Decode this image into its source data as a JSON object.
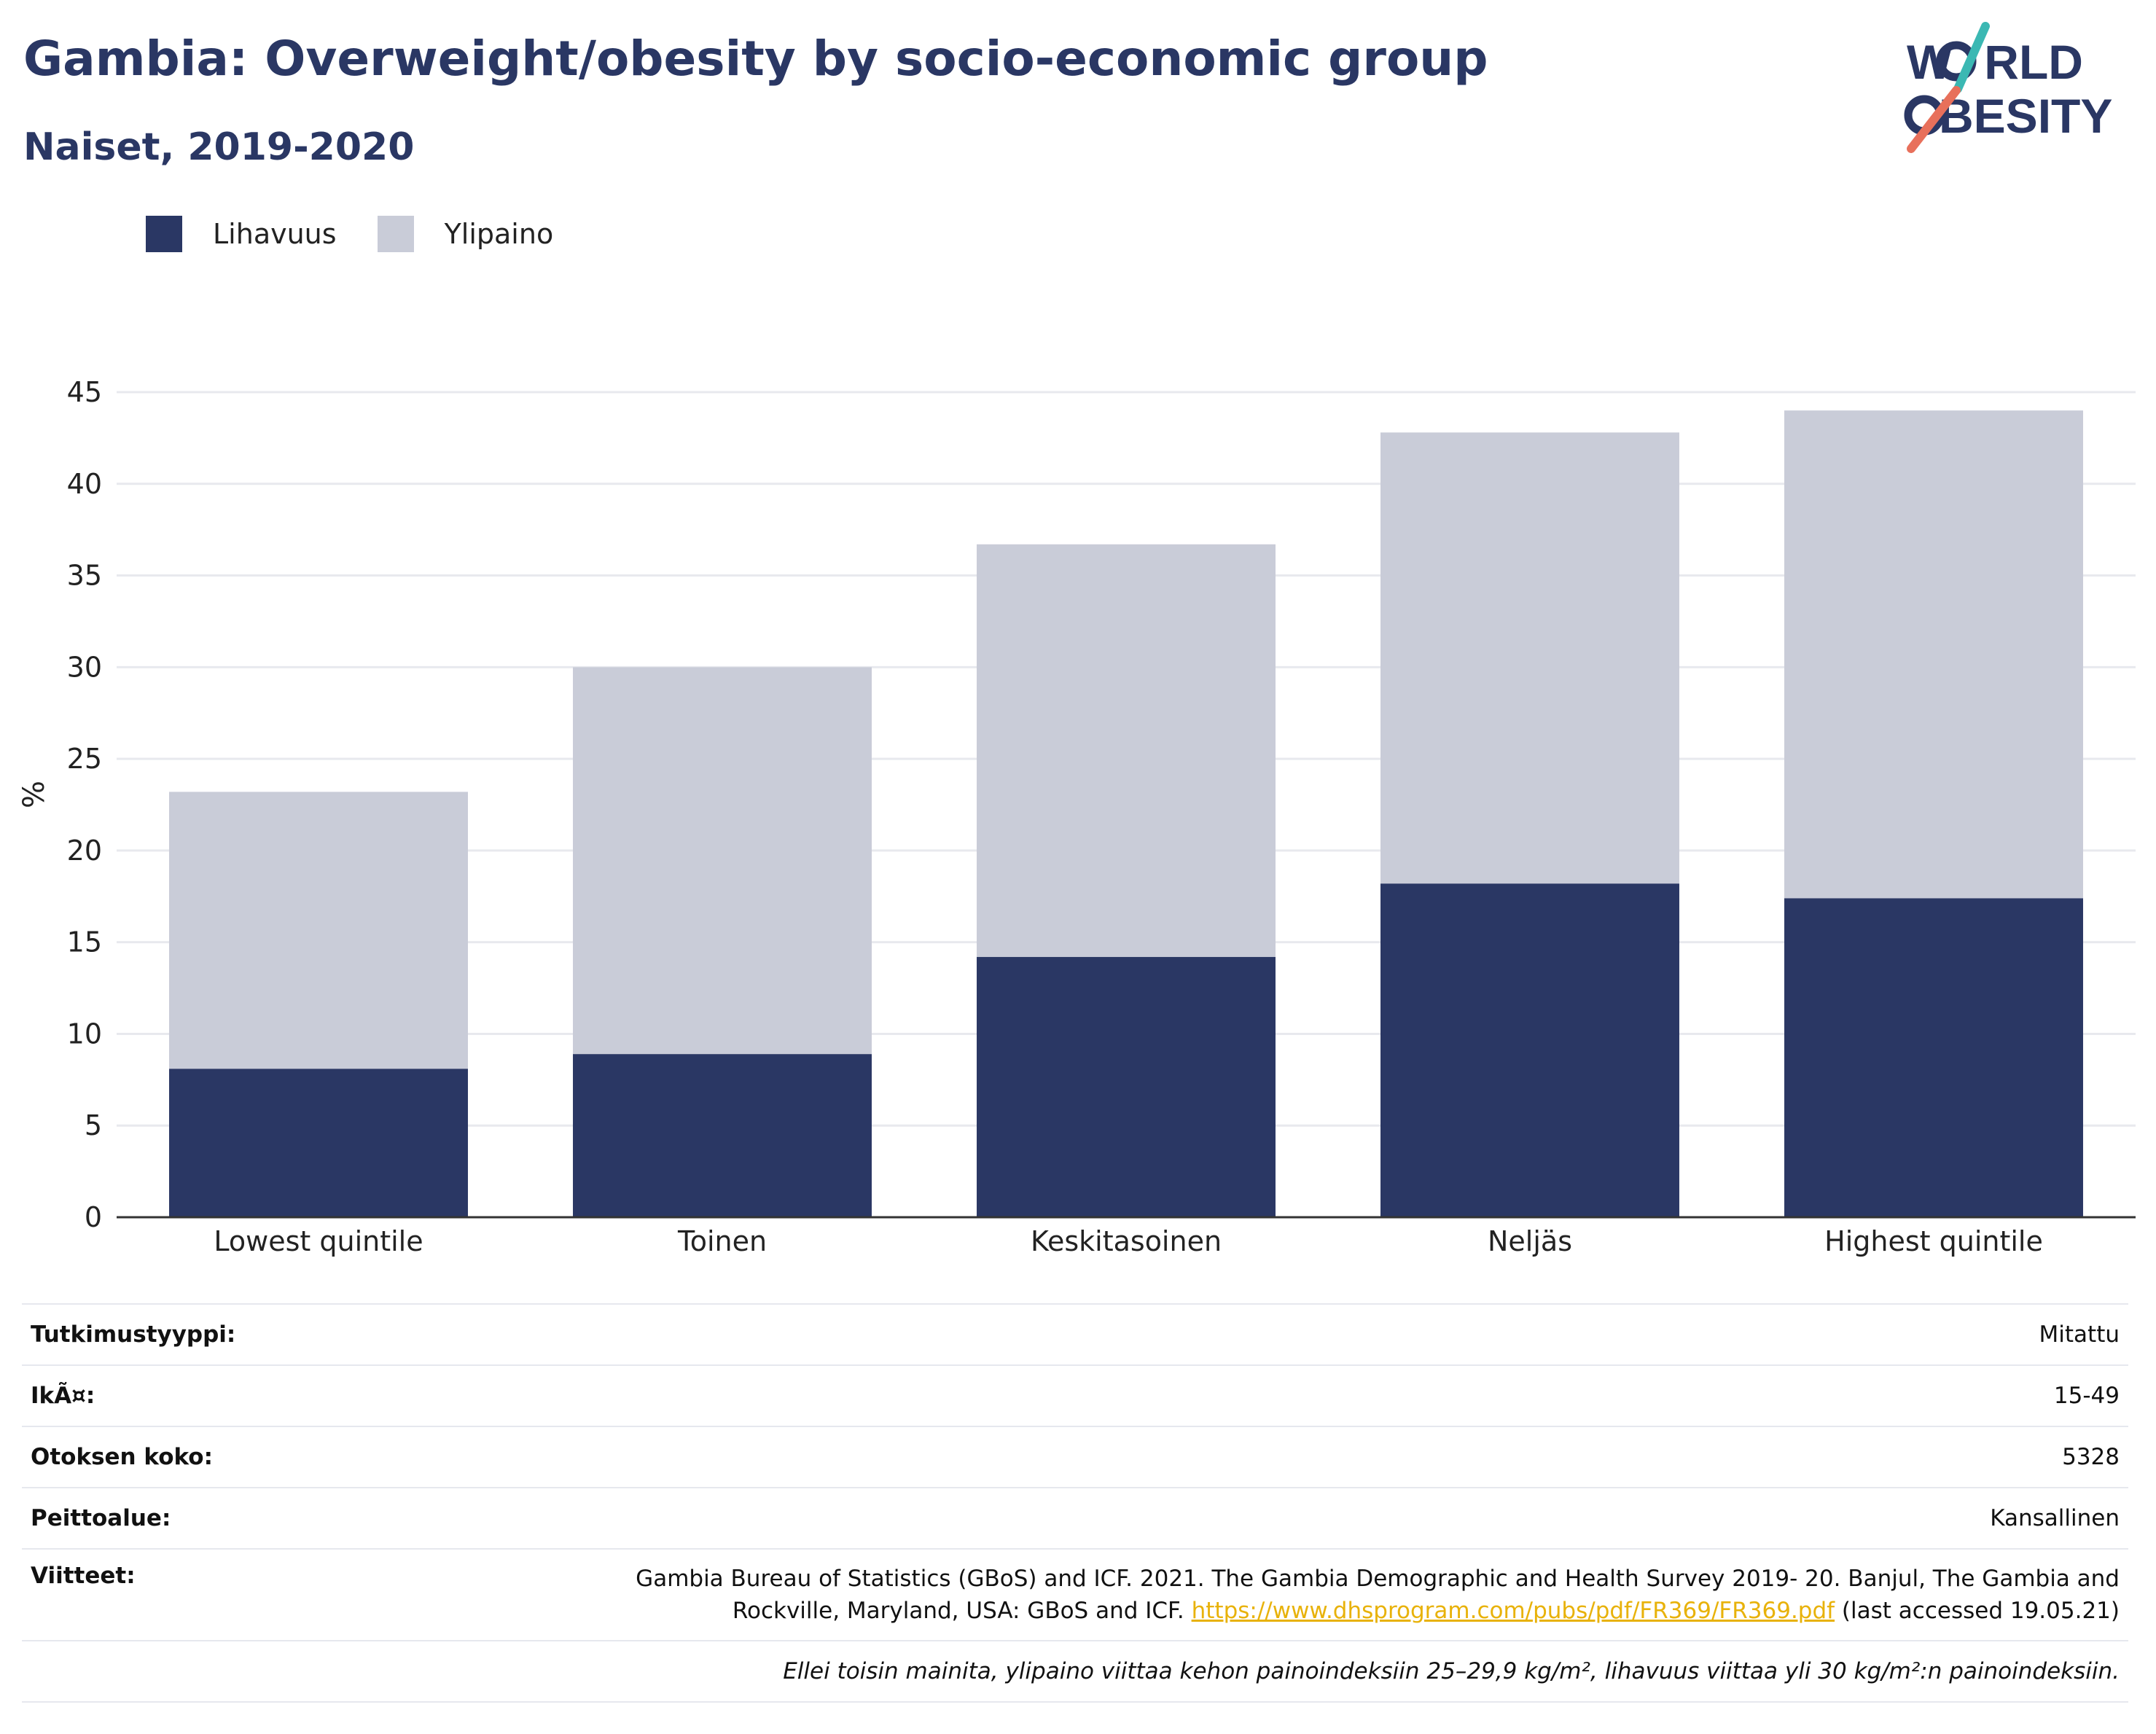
{
  "title": "Gambia: Overweight/obesity by socio-economic group",
  "subtitle": "Naiset, 2019-2020",
  "logo": {
    "line1_w": "W",
    "line1_rest": "RLD",
    "line2_o": "O",
    "line2_rest": "BESITY",
    "accent_teal": "#3bb8b3",
    "accent_coral": "#e8705b"
  },
  "legend": [
    {
      "label": "Lihavuus",
      "color": "#2a3764"
    },
    {
      "label": "Ylipaino",
      "color": "#c9ccd8"
    }
  ],
  "chart_data": {
    "type": "bar",
    "stacked": true,
    "categories": [
      "Lowest quintile",
      "Toinen",
      "Keskitasoinen",
      "Neljäs",
      "Highest quintile"
    ],
    "series": [
      {
        "name": "Lihavuus",
        "color": "#2a3764",
        "values": [
          8.1,
          8.9,
          14.2,
          18.2,
          17.4
        ]
      },
      {
        "name": "Ylipaino",
        "color": "#c9ccd8",
        "values": [
          15.1,
          21.1,
          22.5,
          24.6,
          26.6
        ]
      }
    ],
    "ylabel": "%",
    "ylim": [
      0,
      45
    ],
    "yticks": [
      0,
      5,
      10,
      15,
      20,
      25,
      30,
      35,
      40,
      45
    ],
    "grid": true,
    "legend_position": "top-left"
  },
  "info": {
    "study_type_label": "Tutkimustyyppi:",
    "study_type_value": "Mitattu",
    "age_label": "IkÃ¤:",
    "age_value": "15-49",
    "sample_label": "Otoksen koko:",
    "sample_value": "5328",
    "coverage_label": "Peittoalue:",
    "coverage_value": "Kansallinen",
    "refs_label": "Viitteet:",
    "refs_line1": "Gambia Bureau of Statistics (GBoS) and ICF. 2021. The Gambia Demographic and Health Survey 2019- 20. Banjul, The Gambia and",
    "refs_line2_pre": "Rockville, Maryland, USA: GBoS and ICF. ",
    "refs_link": "https://www.dhsprogram.com/pubs/pdf/FR369/FR369.pdf",
    "refs_line2_post": " (last accessed 19.05.21)",
    "note": "Ellei toisin mainita, ylipaino viittaa kehon painoindeksiin 25–29,9 kg/m², lihavuus viittaa yli 30 kg/m²:n painoindeksiin."
  }
}
